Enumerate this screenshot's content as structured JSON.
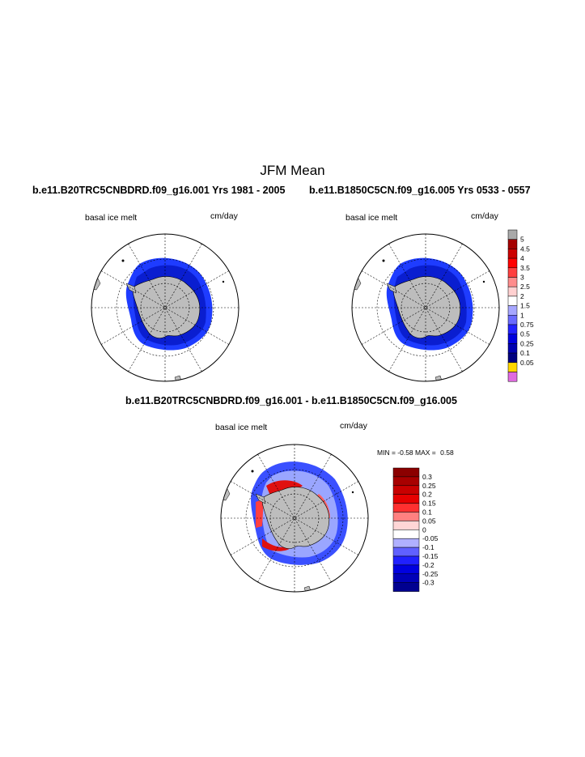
{
  "figure": {
    "title": "JFM Mean",
    "panels": [
      {
        "case_title": "b.e11.B20TRC5CNBDRD.f09_g16.001  Yrs 1981 - 2005",
        "field_label": "basal ice melt",
        "units": "cm/day"
      },
      {
        "case_title": "b.e11.B1850C5CN.f09_g16.005  Yrs 0533 - 0557",
        "field_label": "basal ice melt",
        "units": "cm/day"
      }
    ],
    "difference": {
      "case_title": "b.e11.B20TRC5CNBDRD.f09_g16.001 - b.e11.B1850C5CN.f09_g16.005",
      "field_label": "basal ice melt",
      "units": "cm/day",
      "min_label": "MIN =",
      "min_value": "-0.58",
      "max_label": "MAX =",
      "max_value": "0.58"
    }
  },
  "colorbar_top": {
    "labels": [
      "5",
      "4.5",
      "4",
      "3.5",
      "3",
      "2.5",
      "2",
      "1.5",
      "1",
      "0.75",
      "0.5",
      "0.25",
      "0.1",
      "0.05"
    ],
    "colors": [
      "#a9a9a9",
      "#a50000",
      "#cc0000",
      "#ff0000",
      "#ff3f3f",
      "#ff8c8c",
      "#ffd0d0",
      "#ffffff",
      "#a6a6ff",
      "#6a6aff",
      "#2222ff",
      "#0000dd",
      "#0000b0",
      "#000080",
      "#ffd700",
      "#e06be0"
    ]
  },
  "colorbar_diff": {
    "labels": [
      "0.3",
      "0.25",
      "0.2",
      "0.15",
      "0.1",
      "0.05",
      "0",
      "-0.05",
      "-0.1",
      "-0.15",
      "-0.2",
      "-0.25",
      "-0.3"
    ],
    "colors": [
      "#8b0000",
      "#a80000",
      "#c80000",
      "#e60000",
      "#ff3030",
      "#ff8080",
      "#ffd6d6",
      "#ffffff",
      "#b0b0ff",
      "#6060ff",
      "#2020ff",
      "#0000e0",
      "#0000b8",
      "#000090"
    ]
  },
  "colors": {
    "land": "#bdbdbd",
    "ocean": "#ffffff",
    "melt_blue": "#1e3cff",
    "melt_deep": "#0a1ed0"
  }
}
